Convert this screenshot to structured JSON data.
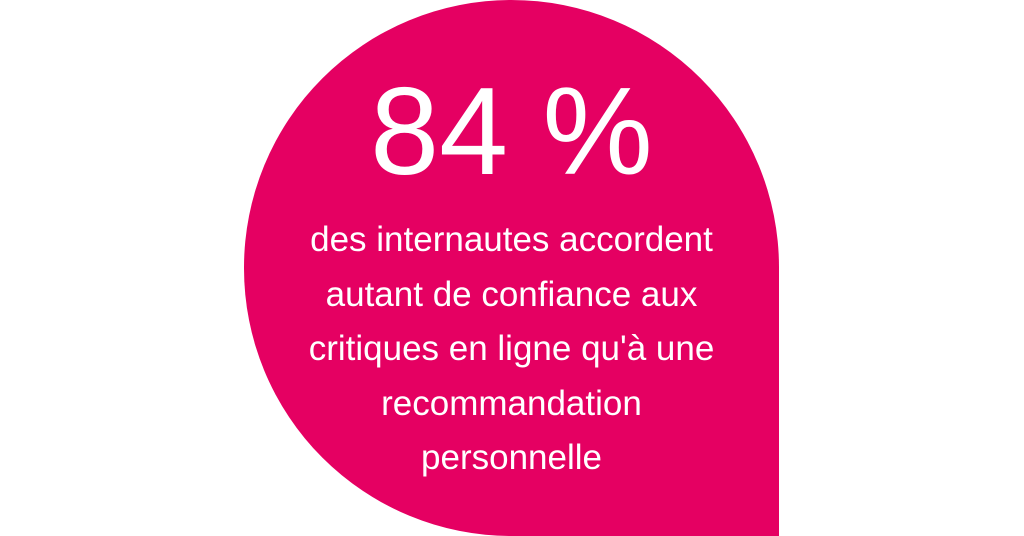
{
  "colors": {
    "accent": "#e50062",
    "text": "#ffffff",
    "background": "#ffffff"
  },
  "stat": "84 %",
  "caption_lines": [
    "des internautes accordent",
    "autant de confiance aux",
    "critiques en ligne qu'à une",
    "recommandation",
    "personnelle"
  ]
}
